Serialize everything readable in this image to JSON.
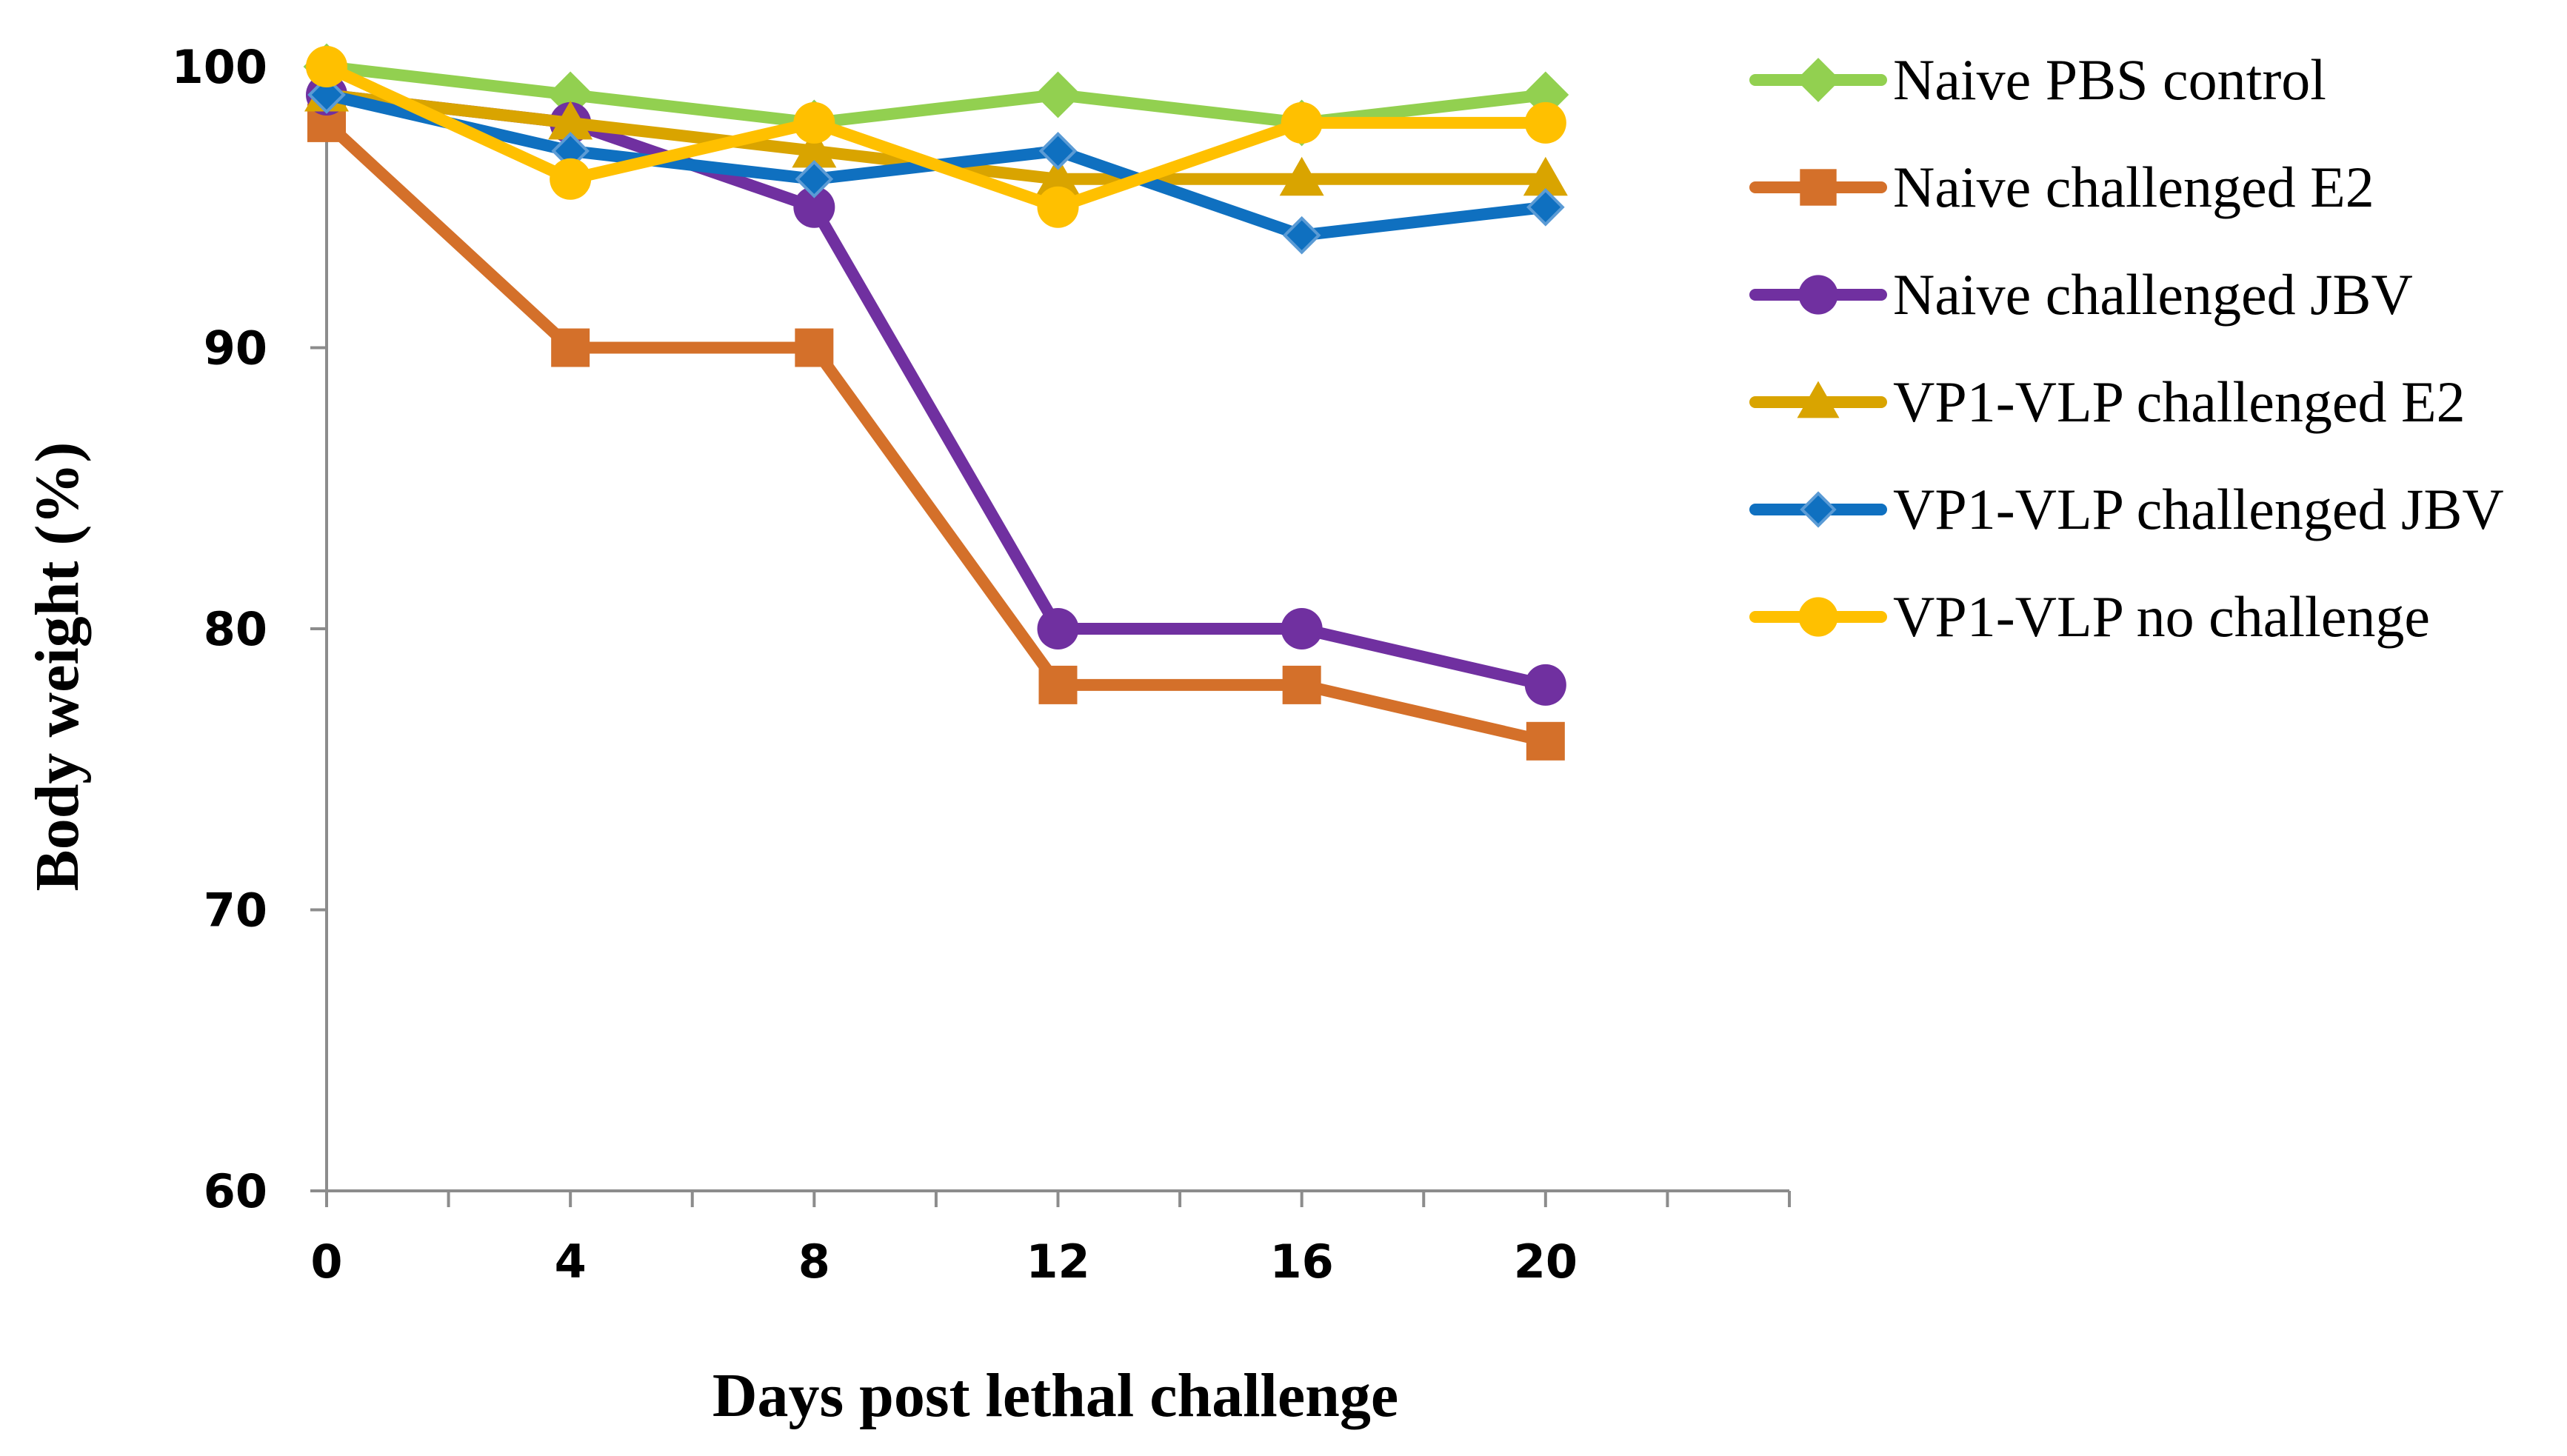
{
  "chart_data": {
    "type": "line",
    "title": "",
    "xlabel": "Days post lethal challenge",
    "ylabel": "Body weight (%)",
    "xlim": [
      0,
      24
    ],
    "ylim": [
      60,
      100
    ],
    "x": [
      0,
      4,
      8,
      12,
      16,
      20
    ],
    "x_tick_labels": [
      "0",
      "4",
      "8",
      "12",
      "16",
      "20"
    ],
    "y_tick_labels": [
      "60",
      "70",
      "80",
      "90",
      "100"
    ],
    "y_ticks": [
      60,
      70,
      80,
      90,
      100
    ],
    "grid": false,
    "legend_position": "right",
    "series": [
      {
        "name": "Naive PBS control",
        "color": "#92D050",
        "marker": "diamond",
        "values": [
          100,
          99,
          98,
          99,
          98,
          99
        ]
      },
      {
        "name": "Naive challenged E2",
        "color": "#D4702A",
        "marker": "square",
        "values": [
          98,
          90,
          90,
          78,
          78,
          76
        ]
      },
      {
        "name": "Naive challenged JBV",
        "color": "#7030A0",
        "marker": "circle",
        "values": [
          99,
          98,
          95,
          80,
          80,
          78
        ]
      },
      {
        "name": "VP1-VLP challenged E2",
        "color": "#D9A400",
        "marker": "triangle",
        "values": [
          99,
          98,
          97,
          96,
          96,
          96
        ]
      },
      {
        "name": "VP1-VLP challenged JBV",
        "color": "#0F70C0",
        "marker": "small-diamond",
        "values": [
          99,
          97,
          96,
          97,
          94,
          95
        ]
      },
      {
        "name": "VP1-VLP no challenge",
        "color": "#FFC000",
        "marker": "circle",
        "values": [
          100,
          96,
          98,
          95,
          98,
          98
        ]
      }
    ]
  }
}
